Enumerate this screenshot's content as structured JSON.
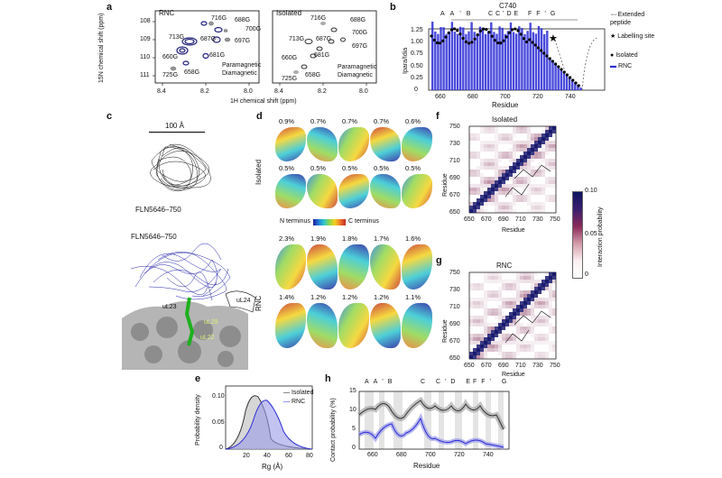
{
  "panels": {
    "a": {
      "label": "a",
      "left_title": "RNC",
      "right_title": "Isolated",
      "xlabel": "1H chemical shift (ppm)",
      "ylabel": "15N chemical shift (ppm)",
      "xticks": [
        "8.4",
        "8.2",
        "8.0"
      ],
      "yticks": [
        "108",
        "109",
        "110",
        "111"
      ],
      "peaks": [
        "716G",
        "688G",
        "700G",
        "713G",
        "687G",
        "697G",
        "681G",
        "660G",
        "725G",
        "658G"
      ],
      "legend": [
        "Paramagnetic",
        "Diamagnetic"
      ]
    },
    "b": {
      "label": "b",
      "letters": [
        "A",
        "A'",
        "B",
        "C",
        "C'D",
        "E",
        "F",
        "F'",
        "G"
      ],
      "top_note": "C740",
      "legend": [
        "Extended peptide",
        "Labelling site",
        "Isolated",
        "RNC"
      ],
      "xticks": [
        "660",
        "680",
        "700",
        "720",
        "740"
      ],
      "yticks": [
        "0",
        "0.25",
        "0.50",
        "0.75",
        "1.00",
        "1.25"
      ],
      "xlabel": "Residue",
      "ylabel": "Ipara/Idia"
    },
    "c": {
      "label": "c",
      "scale": "100 Å",
      "top_name": "FLN5646–750",
      "bottom_name": "FLN5646–750",
      "protein1": "uL23",
      "protein2": "uL24",
      "protein3": "uL29",
      "protein4": "uL22"
    },
    "d": {
      "label": "d",
      "isolated_label": "Isolated",
      "rnc_label": "RNC",
      "colorbar_left": "N terminus",
      "colorbar_right": "C terminus",
      "iso_row1": [
        "0.9%",
        "0.7%",
        "0.7%",
        "0.7%",
        "0.6%"
      ],
      "iso_row2": [
        "0.5%",
        "0.5%",
        "0.5%",
        "0.5%",
        "0.5%"
      ],
      "rnc_row1": [
        "2.3%",
        "1.9%",
        "1.8%",
        "1.7%",
        "1.6%"
      ],
      "rnc_row2": [
        "1.4%",
        "1.2%",
        "1.2%",
        "1.2%",
        "1.1%"
      ]
    },
    "e": {
      "label": "e",
      "xlabel": "Rg (Å)",
      "ylabel": "Probability density",
      "xticks": [
        "20",
        "40",
        "60",
        "80"
      ],
      "yticks": [
        "0",
        "0.05",
        "0.10"
      ],
      "legend": [
        "Isolated",
        "RNC"
      ]
    },
    "f": {
      "label": "f",
      "title": "Isolated",
      "ticks": [
        "650",
        "670",
        "690",
        "710",
        "730",
        "750"
      ],
      "xlabel": "Residue",
      "ylabel": "Residue"
    },
    "g": {
      "label": "g",
      "title": "RNC",
      "ticks": [
        "650",
        "670",
        "690",
        "710",
        "730",
        "750"
      ],
      "xlabel": "Residue",
      "ylabel": "Residue"
    },
    "colorbar": {
      "label": "Interaction probability",
      "ticks": [
        "0.10",
        "0.05",
        "0"
      ]
    },
    "h": {
      "label": "h",
      "letters": [
        "A",
        "A'",
        "B",
        "C",
        "C'D",
        "E",
        "F",
        "F'",
        "G"
      ],
      "xticks": [
        "660",
        "680",
        "700",
        "720",
        "740"
      ],
      "yticks": [
        "0",
        "5",
        "10",
        "15"
      ],
      "xlabel": "Residue",
      "ylabel": "Contact probability (%)"
    }
  },
  "colors": {
    "rnc": "#2a2ad6",
    "isolated": "#333333",
    "heat": "#7a1f4a",
    "diag": "#1a1a6e"
  }
}
